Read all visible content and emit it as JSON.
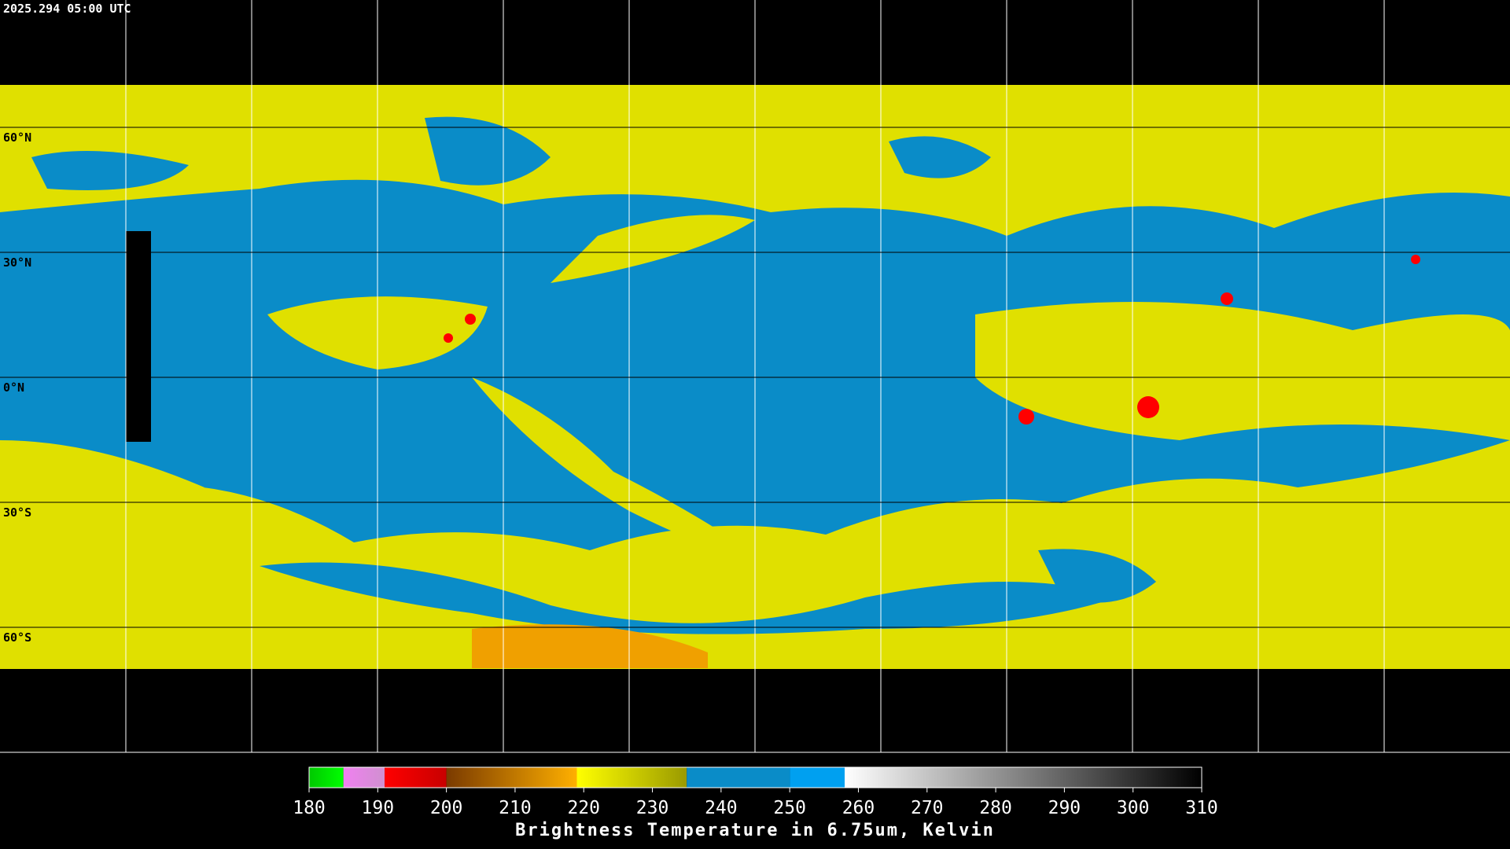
{
  "header": {
    "timestamp": "2025.294 05:00 UTC"
  },
  "map": {
    "lat_lines": [
      {
        "value": 60,
        "label": "60°N"
      },
      {
        "value": 30,
        "label": "30°N"
      },
      {
        "value": 0,
        "label": "0°N"
      },
      {
        "value": -30,
        "label": "30°S"
      },
      {
        "value": -60,
        "label": "60°S"
      }
    ]
  },
  "colorbar": {
    "range": [
      180,
      310
    ],
    "ticks": [
      180,
      190,
      200,
      210,
      220,
      230,
      240,
      250,
      260,
      270,
      280,
      290,
      300,
      310
    ],
    "segments": [
      {
        "from": 180,
        "to": 185,
        "colors": [
          "#00c800",
          "#00ff00"
        ]
      },
      {
        "from": 185,
        "to": 191,
        "colors": [
          "#f080f0",
          "#d090d0"
        ]
      },
      {
        "from": 191,
        "to": 200,
        "colors": [
          "#ff0000",
          "#c80000"
        ]
      },
      {
        "from": 200,
        "to": 219,
        "colors": [
          "#7a3a00",
          "#ffb000"
        ]
      },
      {
        "from": 219,
        "to": 235,
        "colors": [
          "#ffff00",
          "#9a9a00"
        ]
      },
      {
        "from": 235,
        "to": 250,
        "colors": [
          "#0a8cc8",
          "#0a8cc8"
        ]
      },
      {
        "from": 250,
        "to": 258,
        "colors": [
          "#00a0f0",
          "#00a0f0"
        ]
      },
      {
        "from": 258,
        "to": 310,
        "colors": [
          "#ffffff",
          "#000000"
        ]
      }
    ],
    "label": "Brightness Temperature in 6.75um, Kelvin"
  }
}
